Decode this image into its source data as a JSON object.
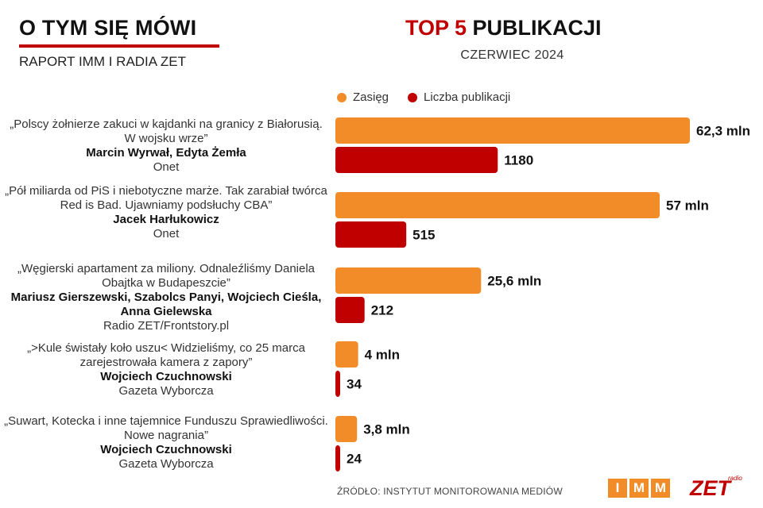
{
  "header": {
    "brand_title": "O TYM SIĘ MÓWI",
    "brand_subtitle": "RAPORT IMM I RADIA ZET",
    "title_accent": "TOP 5",
    "title_rest": " PUBLIKACJI",
    "period": "CZERWIEC 2024"
  },
  "colors": {
    "reach": "#f28c28",
    "count": "#c00000",
    "brand_red": "#c00000"
  },
  "legend": {
    "reach_label": "Zasięg",
    "count_label": "Liczba publikacji"
  },
  "publications": [
    {
      "headline": "„Polscy żołnierze zakuci w kajdanki na granicy z Białorusią. W wojsku wrze”",
      "authors": "Marcin Wyrwał, Edyta Żemła",
      "outlet": "Onet"
    },
    {
      "headline": "„Pół miliarda od PiS i niebotyczne marże. Tak zarabiał twórca Red is Bad. Ujawniamy podsłuchy CBA”",
      "authors": "Jacek Harłukowicz",
      "outlet": "Onet"
    },
    {
      "headline": "„Węgierski apartament za miliony. Odnaleźliśmy Daniela Obajtka w Budapeszcie”",
      "authors": "Mariusz Gierszewski, Szabolcs Panyi, Wojciech Cieśla, Anna Gielewska",
      "outlet": "Radio ZET/Frontstory.pl"
    },
    {
      "headline": "„>Kule świstały koło uszu< Widzieliśmy, co 25 marca zarejestrowała kamera z zapory”",
      "authors": "Wojciech Czuchnowski",
      "outlet": "Gazeta Wyborcza"
    },
    {
      "headline": "„Suwart, Kotecka i inne tajemnice Funduszu Sprawiedliwości. Nowe nagrania”",
      "authors": "Wojciech Czuchnowski",
      "outlet": "Gazeta Wyborcza"
    }
  ],
  "chart_data": {
    "type": "bar",
    "orientation": "horizontal",
    "title": "TOP 5 PUBLIKACJI",
    "subtitle": "CZERWIEC 2024",
    "legend_position": "top",
    "grid": false,
    "categories": [
      "„Polscy żołnierze zakuci w kajdanki na granicy z Białorusią. W wojsku wrze”",
      "„Pół miliarda od PiS i niebotyczne marże. Tak zarabiał twórca Red is Bad. Ujawniamy podsłuchy CBA”",
      "„Węgierski apartament za miliony. Odnaleźliśmy Daniela Obajtka w Budapeszcie”",
      "„>Kule świstały koło uszu< Widzieliśmy, co 25 marca zarejestrowała kamera z zapory”",
      "„Suwart, Kotecka i inne tajemnice Funduszu Sprawiedliwości. Nowe nagrania”"
    ],
    "series": [
      {
        "name": "Zasięg",
        "values": [
          62.3,
          57,
          25.6,
          4,
          3.8
        ],
        "labels": [
          "62,3 mln",
          "57 mln",
          "25,6 mln",
          "4 mln",
          "3,8 mln"
        ]
      },
      {
        "name": "Liczba publikacji",
        "values": [
          1180,
          515,
          212,
          34,
          24
        ],
        "labels": [
          "1180",
          "515",
          "212",
          "34",
          "24"
        ]
      }
    ]
  },
  "footer": {
    "source": "ŹRÓDŁO: INSTYTUT MONITOROWANIA MEDIÓW"
  },
  "logos": {
    "imm": [
      "I",
      "M",
      "M"
    ],
    "zet_text": "ZET",
    "zet_small": "radio"
  }
}
